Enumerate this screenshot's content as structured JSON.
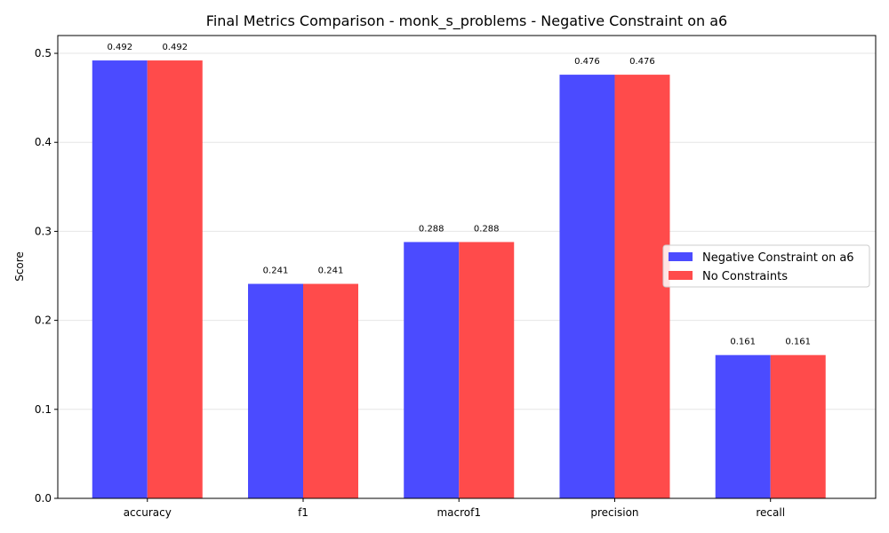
{
  "chart_data": {
    "type": "bar",
    "title": "Final Metrics Comparison - monk_s_problems - Negative Constraint on a6",
    "xlabel": "",
    "ylabel": "Score",
    "ylim": [
      0,
      0.52
    ],
    "yticks": [
      "0.0",
      "0.1",
      "0.2",
      "0.3",
      "0.4",
      "0.5"
    ],
    "grid": "y-axis",
    "legend_position": "center-right",
    "categories": [
      "accuracy",
      "f1",
      "macrof1",
      "precision",
      "recall"
    ],
    "series": [
      {
        "name": "Negative Constraint on a6",
        "color": "#4b4bff",
        "values": [
          0.492,
          0.241,
          0.288,
          0.476,
          0.161
        ],
        "labels": [
          "0.492",
          "0.241",
          "0.288",
          "0.476",
          "0.161"
        ]
      },
      {
        "name": "No Constraints",
        "color": "#ff4b4b",
        "values": [
          0.492,
          0.241,
          0.288,
          0.476,
          0.161
        ],
        "labels": [
          "0.492",
          "0.241",
          "0.288",
          "0.476",
          "0.161"
        ]
      }
    ]
  }
}
